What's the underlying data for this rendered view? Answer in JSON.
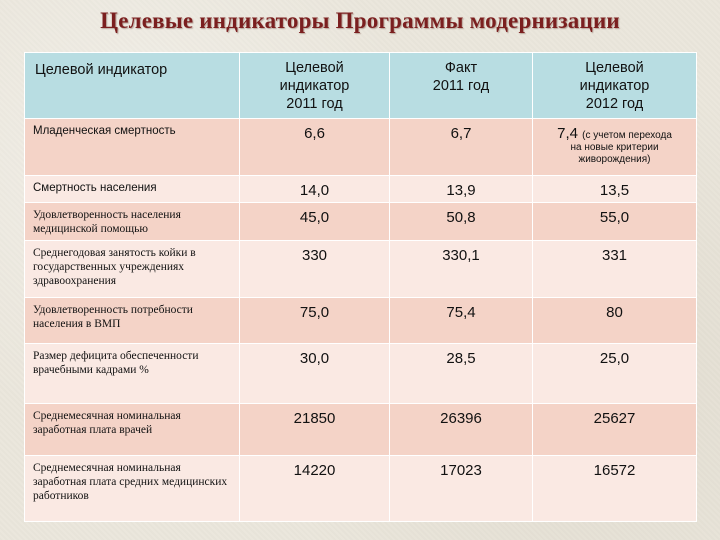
{
  "title": "Целевые индикаторы Программы модернизации",
  "headers": {
    "indicator": "Целевой индикатор",
    "target2011": [
      "Целевой",
      "индикатор",
      "2011 год"
    ],
    "fact2011": [
      "Факт",
      "2011 год"
    ],
    "target2012": [
      "Целевой",
      "индикатор",
      "2012 год"
    ]
  },
  "rows": [
    {
      "label": "Младенческая смертность",
      "target2011": "6,6",
      "fact2011": "6,7",
      "target2012": "7,4",
      "target2012_note": [
        "(с учетом перехода",
        "на новые критерии",
        "живорождения)"
      ]
    },
    {
      "label": "Смертность населения",
      "target2011": "14,0",
      "fact2011": "13,9",
      "target2012": "13,5"
    },
    {
      "label": "Удовлетворенность населения медицинской помощью",
      "target2011": "45,0",
      "fact2011": "50,8",
      "target2012": "55,0"
    },
    {
      "label": "Среднегодовая занятость койки в государственных учреждениях здравоохранения",
      "target2011": "330",
      "fact2011": "330,1",
      "target2012": "331"
    },
    {
      "label": "Удовлетворенность потребности населения в ВМП",
      "target2011": "75,0",
      "fact2011": "75,4",
      "target2012": "80"
    },
    {
      "label": "Размер дефицита обеспеченности врачебными кадрами %",
      "target2011": "30,0",
      "fact2011": "28,5",
      "target2012": "25,0"
    },
    {
      "label": "Среднемесячная номинальная заработная плата врачей",
      "target2011": "21850",
      "fact2011": "26396",
      "target2012": "25627"
    },
    {
      "label": "Среднемесячная номинальная заработная плата средних медицинских работников",
      "target2011": "14220",
      "fact2011": "17023",
      "target2012": "16572"
    }
  ],
  "colors": {
    "title": "#7b1f1f",
    "header_bg": "#b8dde2",
    "row_dark": "#f4d3c7",
    "row_light": "#fae9e3"
  }
}
